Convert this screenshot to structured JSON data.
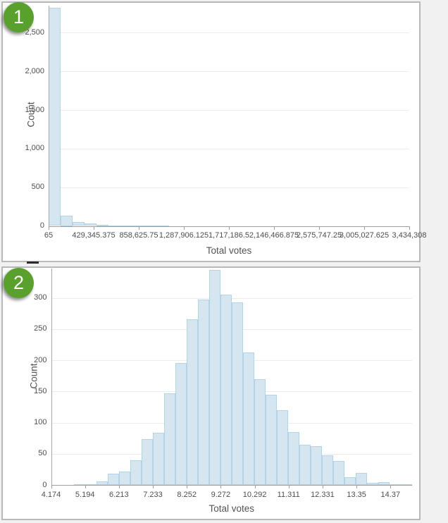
{
  "badges": [
    {
      "label": "1"
    },
    {
      "label": "2"
    }
  ],
  "colors": {
    "badge_green": "#5aa02d",
    "bar_fill": "#d5e6f1",
    "bar_stroke": "#b5d3e6",
    "gridline": "#ececec",
    "axis": "#9e9e9e",
    "tick_text": "#4e4e4e",
    "panel_border": "#b9b9b9"
  },
  "chart_data": [
    {
      "type": "bar",
      "subtype": "histogram",
      "title": "",
      "xlabel": "Total votes",
      "ylabel": "Count",
      "grid": true,
      "legend": false,
      "xlim": [
        65,
        3434308
      ],
      "ylim": [
        0,
        2850
      ],
      "bins": {
        "start": 65,
        "width": 114474.77,
        "count": 30
      },
      "values": [
        2820,
        130,
        50,
        28,
        12,
        5,
        9,
        4,
        2,
        1,
        0,
        0,
        0,
        0,
        0,
        0,
        0,
        0,
        0,
        0,
        0,
        0,
        0,
        0,
        0,
        0,
        0,
        0,
        0,
        0
      ],
      "x_ticks": {
        "values": [
          65,
          429345.375,
          858625.75,
          1287906.125,
          1717186.5,
          2146466.875,
          2575747.25,
          3005027.625,
          3434308
        ],
        "labels": [
          "65",
          "429,345.375",
          "858,625.75",
          "1,287,906.125",
          "1,717,186.5",
          "2,146,466.875",
          "2,575,747.25",
          "3,005,027.625",
          "3,434,308"
        ]
      },
      "y_ticks": {
        "values": [
          0,
          500,
          1000,
          1500,
          2000,
          2500
        ],
        "labels": [
          "0",
          "500",
          "1,000",
          "1,500",
          "2,000",
          "2,500"
        ]
      },
      "style": {
        "fill": "#d5e6f1",
        "stroke": "#b5d3e6"
      }
    },
    {
      "type": "bar",
      "subtype": "histogram",
      "title": "",
      "xlabel": "Total votes",
      "ylabel": "Count",
      "grid": true,
      "legend": false,
      "xlim": [
        4.174,
        15.02
      ],
      "ylim": [
        0,
        347
      ],
      "bins": {
        "start": 4.174,
        "width": 0.339,
        "count": 32
      },
      "values": [
        0,
        0,
        1,
        1,
        6,
        18,
        22,
        40,
        73,
        84,
        147,
        196,
        266,
        297,
        345,
        305,
        293,
        213,
        169,
        145,
        120,
        85,
        64,
        62,
        48,
        38,
        13,
        19,
        3,
        4,
        1,
        1
      ],
      "x_ticks": {
        "values": [
          4.174,
          5.194,
          6.213,
          7.233,
          8.252,
          9.272,
          10.292,
          11.311,
          12.331,
          13.35,
          14.37
        ],
        "labels": [
          "4.174",
          "5.194",
          "6.213",
          "7.233",
          "8.252",
          "9.272",
          "10.292",
          "11.311",
          "12.331",
          "13.35",
          "14.37"
        ]
      },
      "y_ticks": {
        "values": [
          0,
          50,
          100,
          150,
          200,
          250,
          300
        ],
        "labels": [
          "0",
          "50",
          "100",
          "150",
          "200",
          "250",
          "300"
        ]
      },
      "style": {
        "fill": "#d5e6f1",
        "stroke": "#b5d3e6"
      }
    }
  ]
}
